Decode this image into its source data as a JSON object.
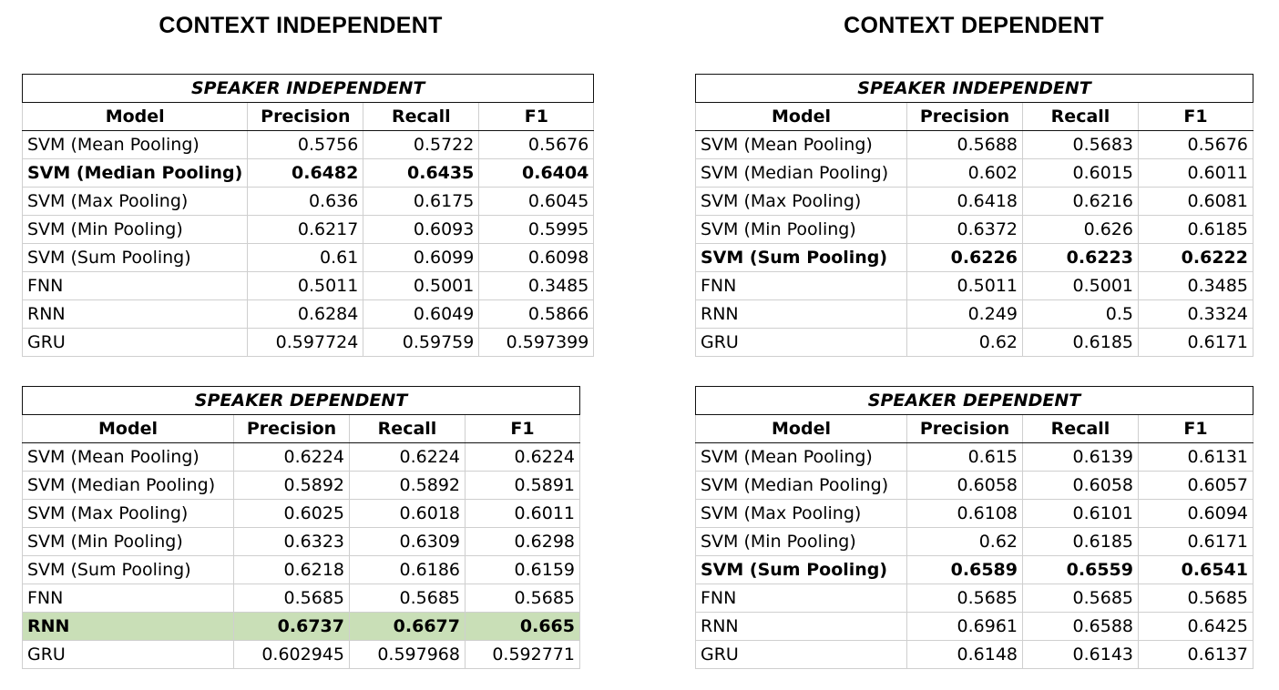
{
  "left_title": "CONTEXT INDEPENDENT",
  "right_title": "CONTEXT DEPENDENT",
  "tables": [
    {
      "caption": "SPEAKER INDEPENDENT",
      "columns": [
        "Model",
        "Precision",
        "Recall",
        "F1"
      ],
      "rows": [
        {
          "model": "SVM (Mean Pooling)",
          "precision": "0.5756",
          "recall": "0.5722",
          "f1": "0.5676",
          "bold": false,
          "highlight": false
        },
        {
          "model": "SVM (Median Pooling)",
          "precision": "0.6482",
          "recall": "0.6435",
          "f1": "0.6404",
          "bold": true,
          "highlight": false
        },
        {
          "model": "SVM (Max Pooling)",
          "precision": "0.636",
          "recall": "0.6175",
          "f1": "0.6045",
          "bold": false,
          "highlight": false
        },
        {
          "model": "SVM (Min Pooling)",
          "precision": "0.6217",
          "recall": "0.6093",
          "f1": "0.5995",
          "bold": false,
          "highlight": false
        },
        {
          "model": "SVM (Sum Pooling)",
          "precision": "0.61",
          "recall": "0.6099",
          "f1": "0.6098",
          "bold": false,
          "highlight": false
        },
        {
          "model": "FNN",
          "precision": "0.5011",
          "recall": "0.5001",
          "f1": "0.3485",
          "bold": false,
          "highlight": false
        },
        {
          "model": "RNN",
          "precision": "0.6284",
          "recall": "0.6049",
          "f1": "0.5866",
          "bold": false,
          "highlight": false
        },
        {
          "model": "GRU",
          "precision": "0.597724",
          "recall": "0.59759",
          "f1": "0.597399",
          "bold": false,
          "highlight": false
        }
      ]
    },
    {
      "caption": "SPEAKER DEPENDENT",
      "columns": [
        "Model",
        "Precision",
        "Recall",
        "F1"
      ],
      "rows": [
        {
          "model": "SVM (Mean Pooling)",
          "precision": "0.6224",
          "recall": "0.6224",
          "f1": "0.6224",
          "bold": false,
          "highlight": false
        },
        {
          "model": "SVM (Median Pooling)",
          "precision": "0.5892",
          "recall": "0.5892",
          "f1": "0.5891",
          "bold": false,
          "highlight": false
        },
        {
          "model": "SVM (Max Pooling)",
          "precision": "0.6025",
          "recall": "0.6018",
          "f1": "0.6011",
          "bold": false,
          "highlight": false
        },
        {
          "model": "SVM (Min Pooling)",
          "precision": "0.6323",
          "recall": "0.6309",
          "f1": "0.6298",
          "bold": false,
          "highlight": false
        },
        {
          "model": "SVM (Sum Pooling)",
          "precision": "0.6218",
          "recall": "0.6186",
          "f1": "0.6159",
          "bold": false,
          "highlight": false
        },
        {
          "model": "FNN",
          "precision": "0.5685",
          "recall": "0.5685",
          "f1": "0.5685",
          "bold": false,
          "highlight": false
        },
        {
          "model": "RNN",
          "precision": "0.6737",
          "recall": "0.6677",
          "f1": "0.665",
          "bold": true,
          "highlight": true
        },
        {
          "model": "GRU",
          "precision": "0.602945",
          "recall": "0.597968",
          "f1": "0.592771",
          "bold": false,
          "highlight": false
        }
      ]
    },
    {
      "caption": "SPEAKER INDEPENDENT",
      "columns": [
        "Model",
        "Precision",
        "Recall",
        "F1"
      ],
      "rows": [
        {
          "model": "SVM (Mean Pooling)",
          "precision": "0.5688",
          "recall": "0.5683",
          "f1": "0.5676",
          "bold": false,
          "highlight": false
        },
        {
          "model": "SVM (Median Pooling)",
          "precision": "0.602",
          "recall": "0.6015",
          "f1": "0.6011",
          "bold": false,
          "highlight": false
        },
        {
          "model": "SVM (Max Pooling)",
          "precision": "0.6418",
          "recall": "0.6216",
          "f1": "0.6081",
          "bold": false,
          "highlight": false
        },
        {
          "model": "SVM (Min Pooling)",
          "precision": "0.6372",
          "recall": "0.626",
          "f1": "0.6185",
          "bold": false,
          "highlight": false
        },
        {
          "model": "SVM (Sum Pooling)",
          "precision": "0.6226",
          "recall": "0.6223",
          "f1": "0.6222",
          "bold": true,
          "highlight": false
        },
        {
          "model": "FNN",
          "precision": "0.5011",
          "recall": "0.5001",
          "f1": "0.3485",
          "bold": false,
          "highlight": false
        },
        {
          "model": "RNN",
          "precision": "0.249",
          "recall": "0.5",
          "f1": "0.3324",
          "bold": false,
          "highlight": false
        },
        {
          "model": "GRU",
          "precision": "0.62",
          "recall": "0.6185",
          "f1": "0.6171",
          "bold": false,
          "highlight": false
        }
      ]
    },
    {
      "caption": "SPEAKER DEPENDENT",
      "columns": [
        "Model",
        "Precision",
        "Recall",
        "F1"
      ],
      "rows": [
        {
          "model": "SVM (Mean Pooling)",
          "precision": "0.615",
          "recall": "0.6139",
          "f1": "0.6131",
          "bold": false,
          "highlight": false
        },
        {
          "model": "SVM (Median Pooling)",
          "precision": "0.6058",
          "recall": "0.6058",
          "f1": "0.6057",
          "bold": false,
          "highlight": false
        },
        {
          "model": "SVM (Max Pooling)",
          "precision": "0.6108",
          "recall": "0.6101",
          "f1": "0.6094",
          "bold": false,
          "highlight": false
        },
        {
          "model": "SVM (Min Pooling)",
          "precision": "0.62",
          "recall": "0.6185",
          "f1": "0.6171",
          "bold": false,
          "highlight": false
        },
        {
          "model": "SVM (Sum Pooling)",
          "precision": "0.6589",
          "recall": "0.6559",
          "f1": "0.6541",
          "bold": true,
          "highlight": false
        },
        {
          "model": "FNN",
          "precision": "0.5685",
          "recall": "0.5685",
          "f1": "0.5685",
          "bold": false,
          "highlight": false
        },
        {
          "model": "RNN",
          "precision": "0.6961",
          "recall": "0.6588",
          "f1": "0.6425",
          "bold": false,
          "highlight": false
        },
        {
          "model": "GRU",
          "precision": "0.6148",
          "recall": "0.6143",
          "f1": "0.6137",
          "bold": false,
          "highlight": false
        }
      ]
    }
  ]
}
